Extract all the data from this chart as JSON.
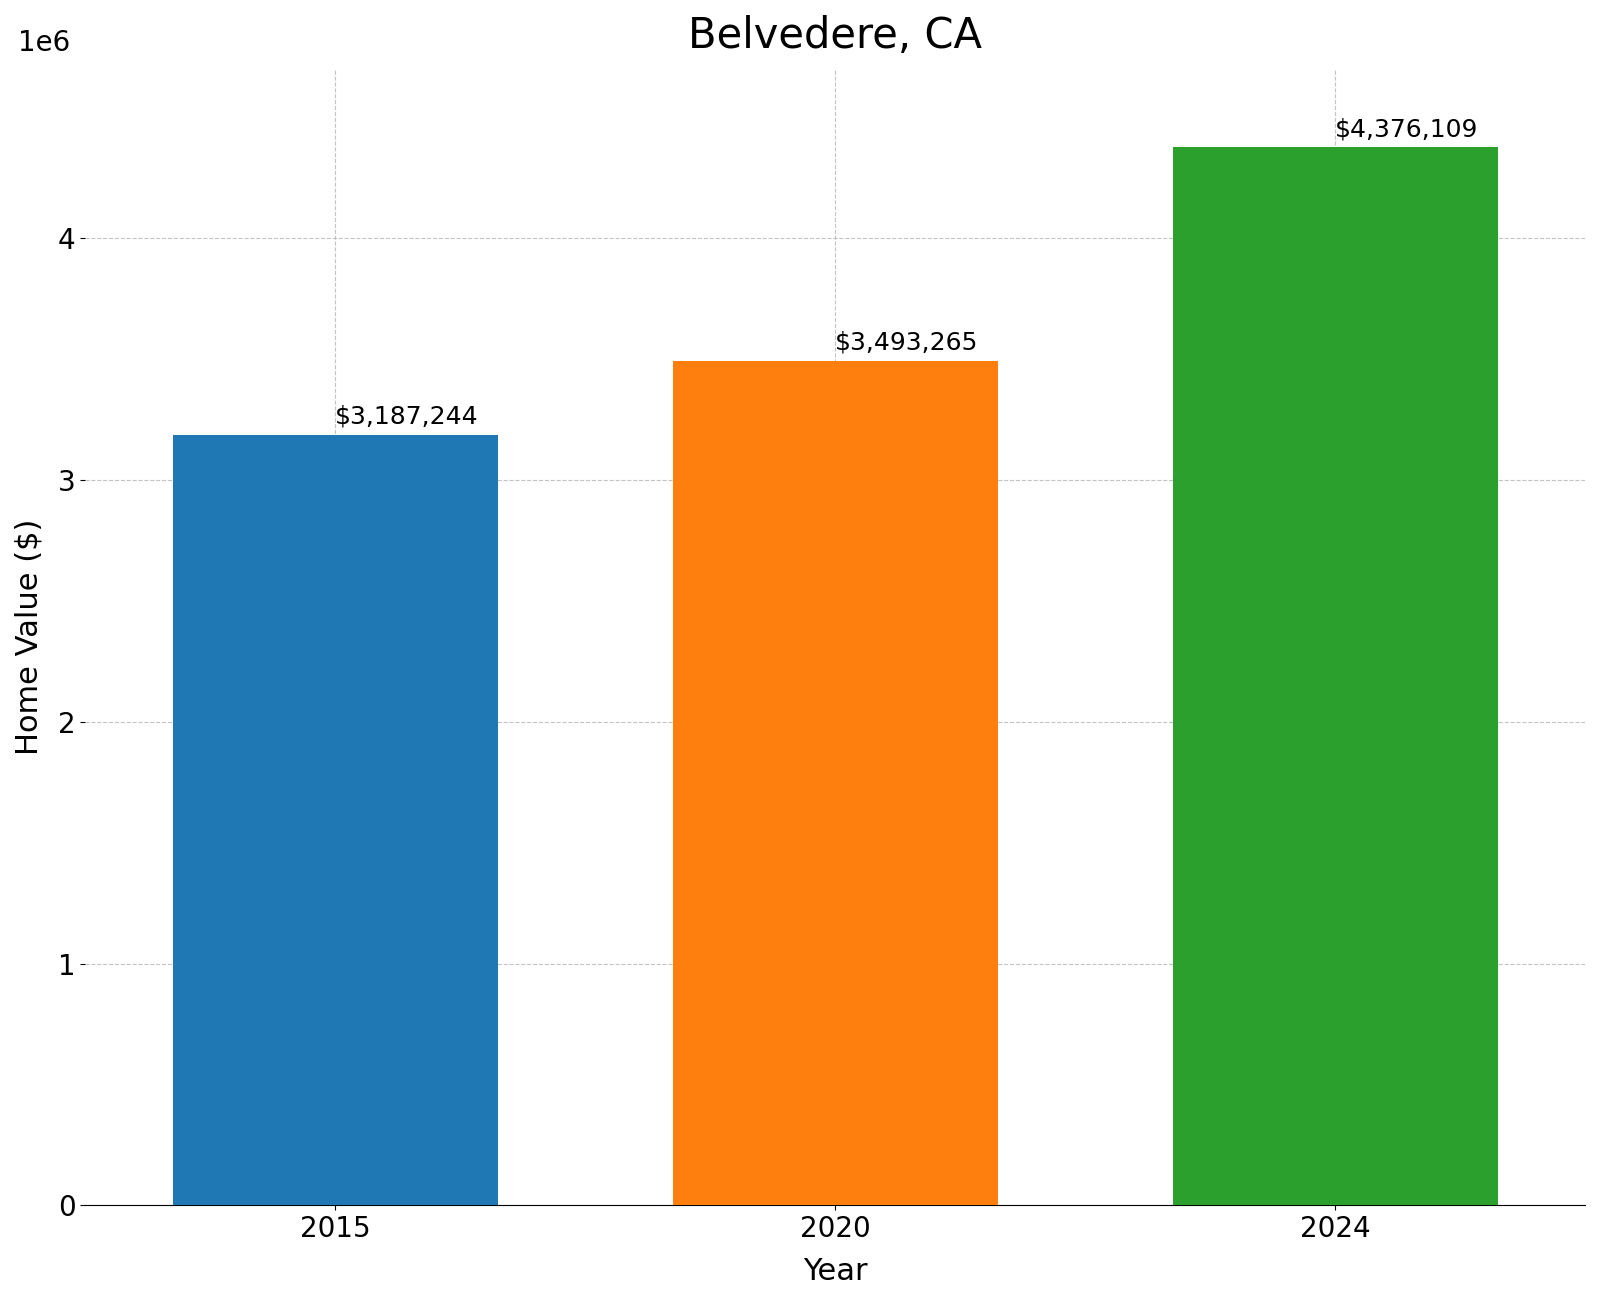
{
  "title": "Belvedere, CA",
  "xlabel": "Year",
  "ylabel": "Home Value ($)",
  "categories": [
    "2015",
    "2020",
    "2024"
  ],
  "values": [
    3187244,
    3493265,
    4376109
  ],
  "bar_colors": [
    "#1f77b4",
    "#ff7f0e",
    "#2ca02c"
  ],
  "labels": [
    "$3,187,244",
    "$3,493,265",
    "$4,376,109"
  ],
  "ylim": [
    0,
    4700000
  ],
  "yticks": [
    0,
    1000000,
    2000000,
    3000000,
    4000000
  ],
  "title_fontsize": 30,
  "axis_label_fontsize": 22,
  "tick_fontsize": 20,
  "annotation_fontsize": 18,
  "bar_width": 0.65,
  "background_color": "#ffffff",
  "grid_color": "#aaaaaa",
  "grid_style": "--",
  "grid_alpha": 0.7
}
